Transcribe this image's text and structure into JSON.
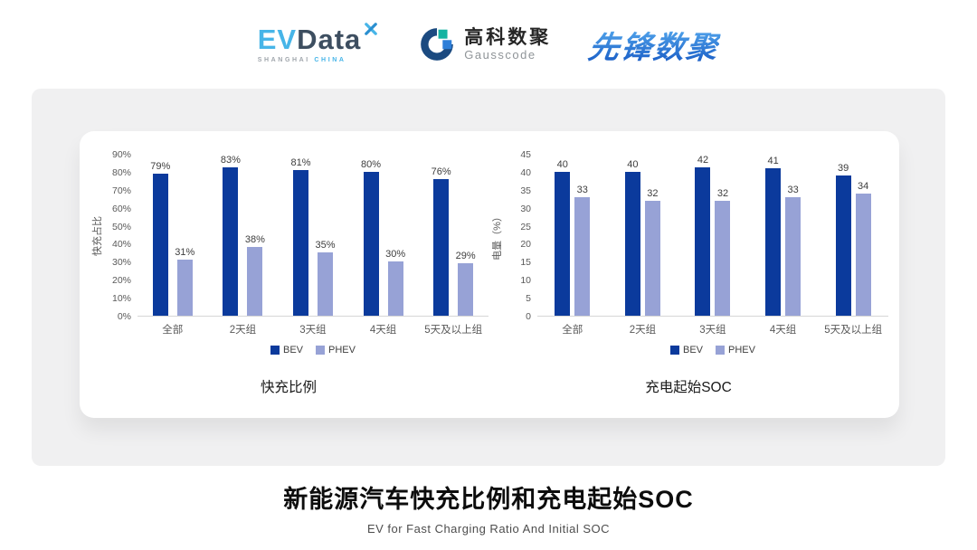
{
  "header": {
    "evdata": {
      "ev": "EV",
      "data": "Data",
      "sub_left": "SHANGHAI",
      "sub_right": "CHINA"
    },
    "gausscode": {
      "name_cn": "高科数聚",
      "name_en": "Gausscode"
    },
    "pioneer": {
      "name": "先锋数聚"
    }
  },
  "colors": {
    "bev": "#0b3a9c",
    "phev": "#97a2d6",
    "axis_text": "#595959",
    "panel_bg": "#f0f0f1",
    "evdata_blue": "#47b5e8",
    "pioneer_blue": "#2e7ce0"
  },
  "chart_data": [
    {
      "type": "bar",
      "title": "快充比例",
      "categories": [
        "全部",
        "2天组",
        "3天组",
        "4天组",
        "5天及以上组"
      ],
      "series": [
        {
          "name": "BEV",
          "color": "#0b3a9c",
          "values": [
            79,
            83,
            81,
            80,
            76
          ]
        },
        {
          "name": "PHEV",
          "color": "#97a2d6",
          "values": [
            31,
            38,
            35,
            30,
            29
          ]
        }
      ],
      "ylabel": "快充占比",
      "ylim": [
        0,
        90
      ],
      "ytick_step": 10,
      "yformat": "percent",
      "grid": false,
      "legend_position": "bottom"
    },
    {
      "type": "bar",
      "title": "充电起始SOC",
      "categories": [
        "全部",
        "2天组",
        "3天组",
        "4天组",
        "5天及以上组"
      ],
      "series": [
        {
          "name": "BEV",
          "color": "#0b3a9c",
          "values": [
            40,
            40,
            42,
            41,
            39
          ]
        },
        {
          "name": "PHEV",
          "color": "#97a2d6",
          "values": [
            33,
            32,
            32,
            33,
            34
          ]
        }
      ],
      "ylabel": "电量（%）",
      "ylim": [
        0,
        45
      ],
      "ytick_step": 5,
      "yformat": "number",
      "grid": false,
      "legend_position": "bottom"
    }
  ],
  "footer": {
    "title": "新能源汽车快充比例和充电起始SOC",
    "subtitle": "EV for Fast Charging Ratio And Initial SOC"
  }
}
